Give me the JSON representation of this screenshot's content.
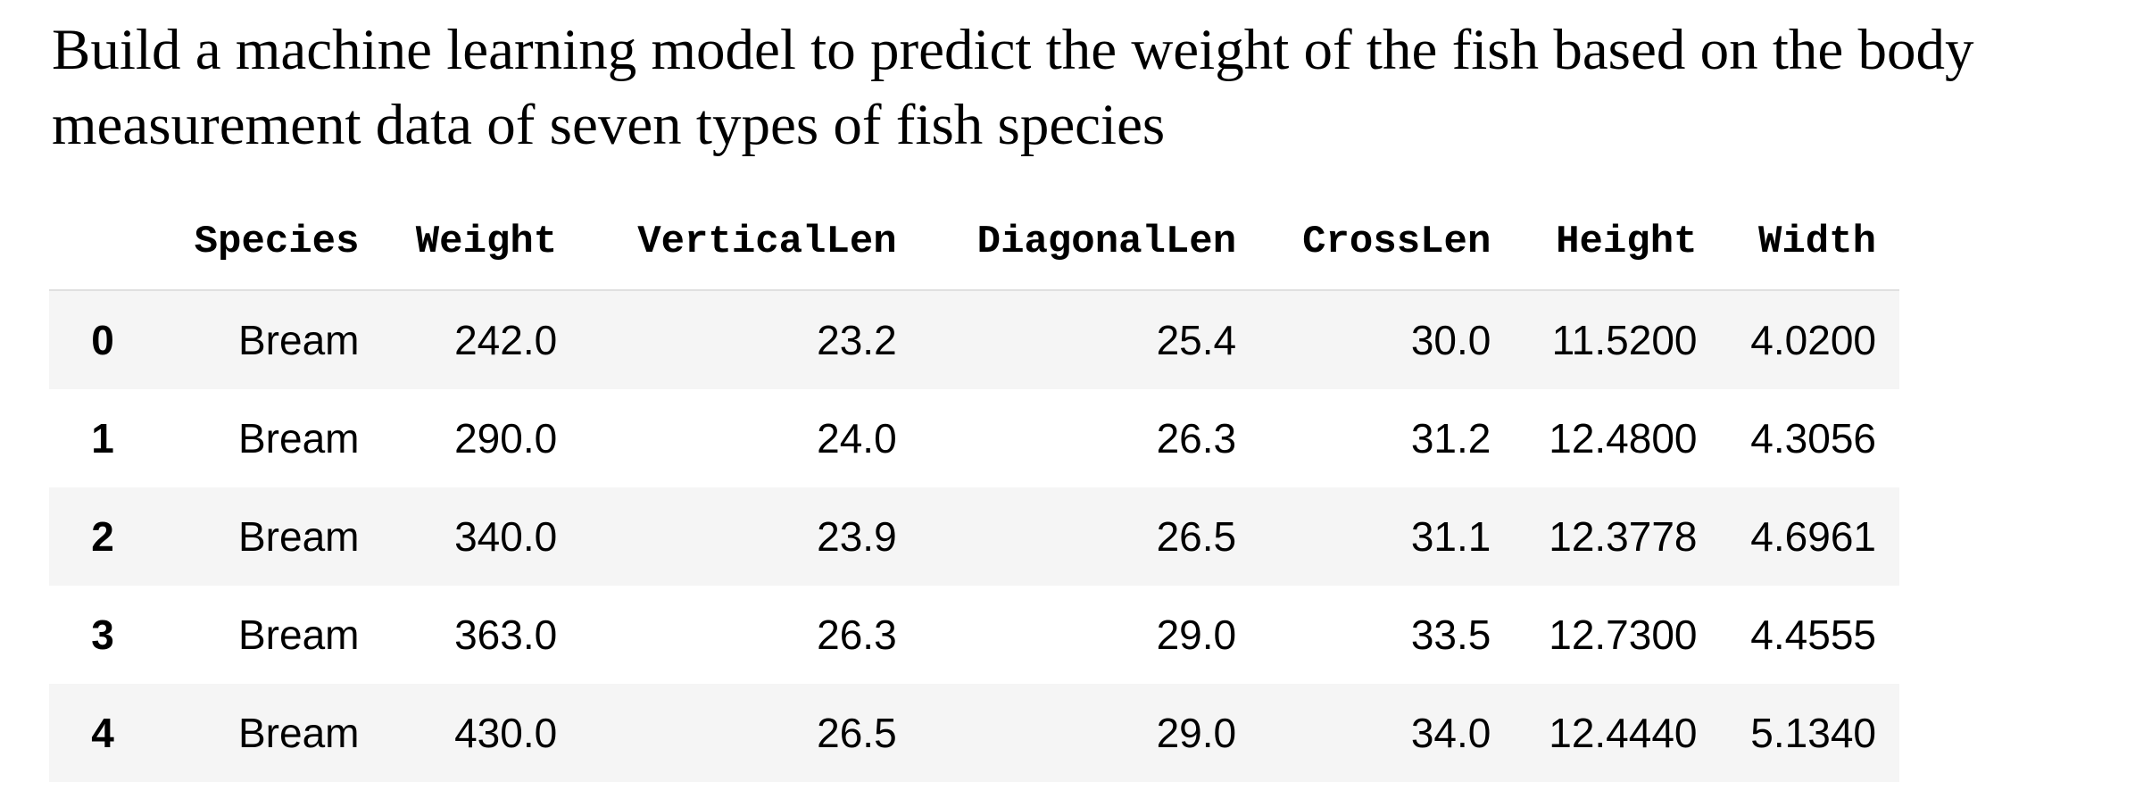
{
  "heading": {
    "line1": "Build a machine learning model to predict the weight of the fish based on the body",
    "line2": "measurement data of seven types of fish species"
  },
  "table": {
    "columns": [
      "Species",
      "Weight",
      "VerticalLen",
      "DiagonalLen",
      "CrossLen",
      "Height",
      "Width"
    ],
    "rows": [
      {
        "index": "0",
        "cells": [
          "Bream",
          "242.0",
          "23.2",
          "25.4",
          "30.0",
          "11.5200",
          "4.0200"
        ]
      },
      {
        "index": "1",
        "cells": [
          "Bream",
          "290.0",
          "24.0",
          "26.3",
          "31.2",
          "12.4800",
          "4.3056"
        ]
      },
      {
        "index": "2",
        "cells": [
          "Bream",
          "340.0",
          "23.9",
          "26.5",
          "31.1",
          "12.3778",
          "4.6961"
        ]
      },
      {
        "index": "3",
        "cells": [
          "Bream",
          "363.0",
          "26.3",
          "29.0",
          "33.5",
          "12.7300",
          "4.4555"
        ]
      },
      {
        "index": "4",
        "cells": [
          "Bream",
          "430.0",
          "26.5",
          "29.0",
          "34.0",
          "12.4440",
          "5.1340"
        ]
      }
    ]
  },
  "colors": {
    "row_stripe": "#f5f5f5",
    "header_border": "#e0e0e0",
    "text": "#000000"
  }
}
